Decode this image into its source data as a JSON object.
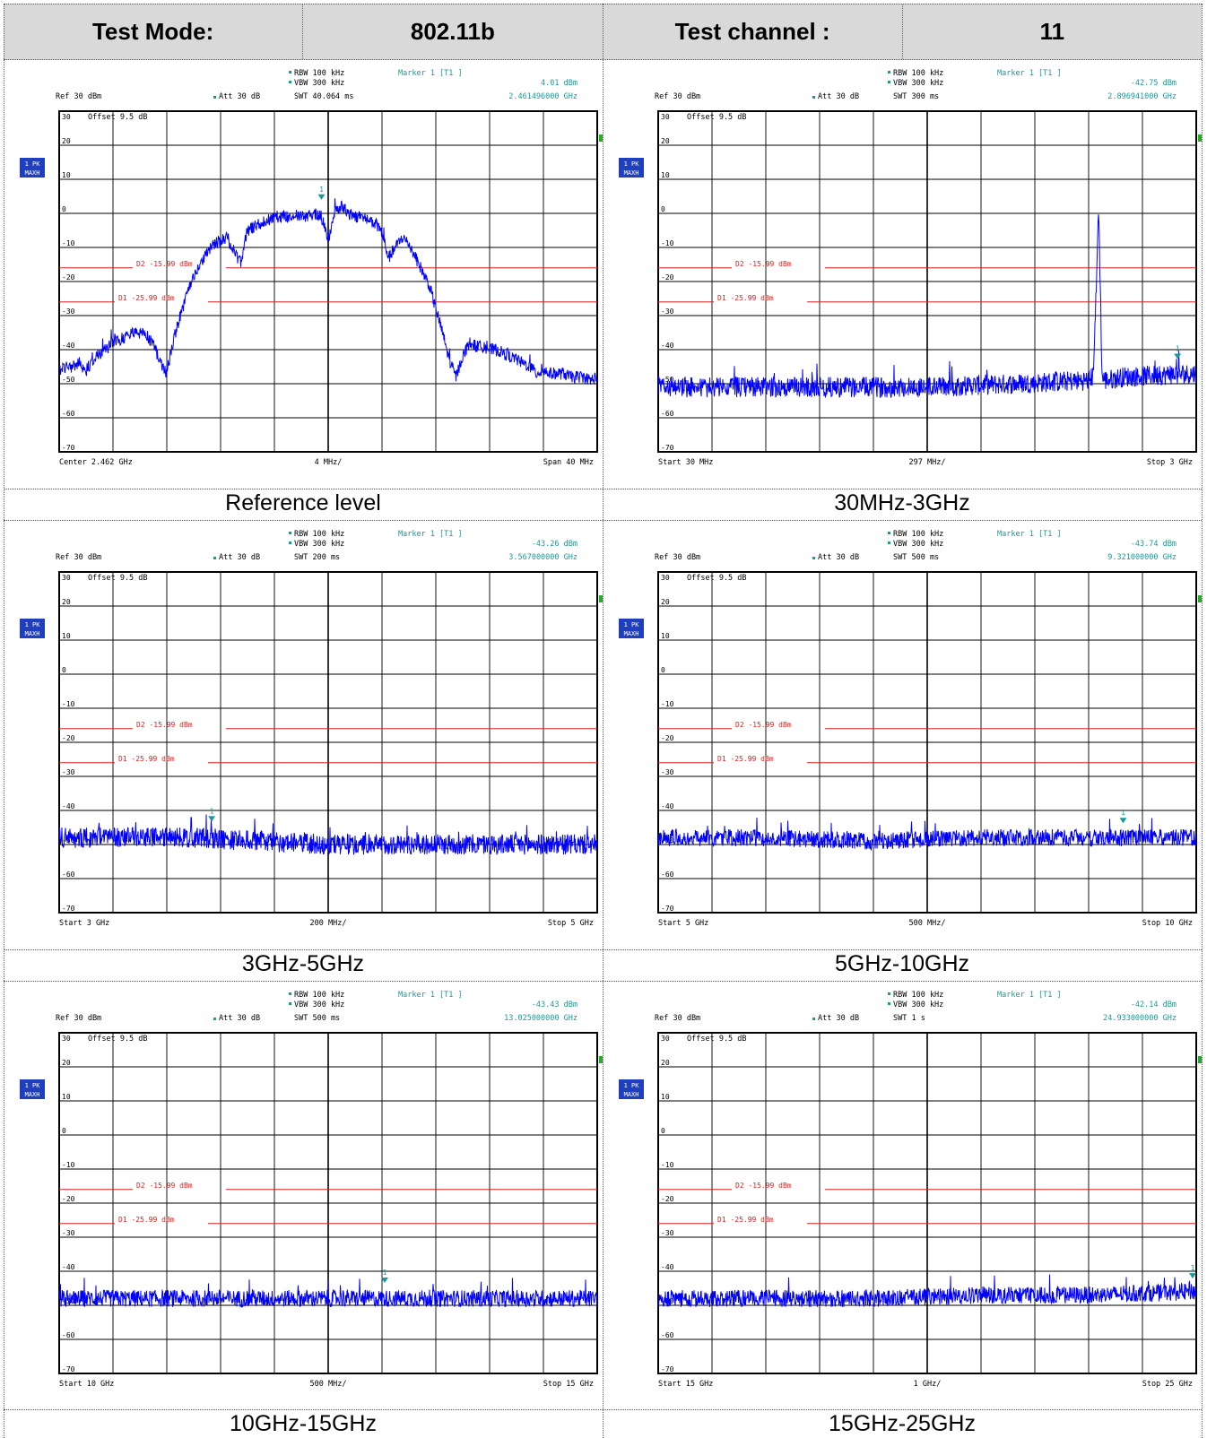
{
  "header": {
    "test_mode_label": "Test Mode:",
    "test_mode_value": "802.11b",
    "test_channel_label": "Test channel :",
    "test_channel_value": "11"
  },
  "plots": [
    {
      "caption": "Reference level",
      "rbw": "RBW 100 kHz",
      "vbw": "VBW 300 kHz",
      "swt": "SWT 40.064 ms",
      "marker": "Marker 1 [T1 ]",
      "marker_level": "4.01 dBm",
      "marker_freq": "2.461496000 GHz",
      "ref": "Ref  30 dBm",
      "att": "Att  30 dB",
      "offset": "Offset  9.5 dB",
      "trace_label": "1 PK",
      "trace_mode": "MAXH",
      "x_left": "Center 2.462 GHz",
      "x_mid": "4 MHz/",
      "x_right": "Span 40 MHz",
      "d1": "D1 -25.99 dBm",
      "d2": "D2 -15.99 dBm",
      "marker_idx": "1"
    },
    {
      "caption": "30MHz-3GHz",
      "rbw": "RBW 100 kHz",
      "vbw": "VBW 300 kHz",
      "swt": "SWT 300 ms",
      "marker": "Marker 1 [T1 ]",
      "marker_level": "-42.75 dBm",
      "marker_freq": "2.896941000 GHz",
      "ref": "Ref  30 dBm",
      "att": "Att  30 dB",
      "offset": "Offset  9.5 dB",
      "trace_label": "1 PK",
      "trace_mode": "MAXH",
      "x_left": "Start 30 MHz",
      "x_mid": "297 MHz/",
      "x_right": "Stop 3 GHz",
      "d1": "D1 -25.99 dBm",
      "d2": "D2 -15.99 dBm",
      "marker_idx": "1"
    },
    {
      "caption": "3GHz-5GHz",
      "rbw": "RBW 100 kHz",
      "vbw": "VBW 300 kHz",
      "swt": "SWT 200 ms",
      "marker": "Marker 1 [T1 ]",
      "marker_level": "-43.26 dBm",
      "marker_freq": "3.567000000 GHz",
      "ref": "Ref  30 dBm",
      "att": "Att  30 dB",
      "offset": "Offset  9.5 dB",
      "trace_label": "1 PK",
      "trace_mode": "MAXH",
      "x_left": "Start 3 GHz",
      "x_mid": "200 MHz/",
      "x_right": "Stop 5 GHz",
      "d1": "D1 -25.99 dBm",
      "d2": "D2 -15.99 dBm",
      "marker_idx": "1"
    },
    {
      "caption": "5GHz-10GHz",
      "rbw": "RBW 100 kHz",
      "vbw": "VBW 300 kHz",
      "swt": "SWT 500 ms",
      "marker": "Marker 1 [T1 ]",
      "marker_level": "-43.74 dBm",
      "marker_freq": "9.321000000 GHz",
      "ref": "Ref  30 dBm",
      "att": "Att  30 dB",
      "offset": "Offset  9.5 dB",
      "trace_label": "1 PK",
      "trace_mode": "MAXH",
      "x_left": "Start 5 GHz",
      "x_mid": "500 MHz/",
      "x_right": "Stop 10 GHz",
      "d1": "D1 -25.99 dBm",
      "d2": "D2 -15.99 dBm",
      "marker_idx": "1"
    },
    {
      "caption": "10GHz-15GHz",
      "rbw": "RBW 100 kHz",
      "vbw": "VBW 300 kHz",
      "swt": "SWT 500 ms",
      "marker": "Marker 1 [T1 ]",
      "marker_level": "-43.43 dBm",
      "marker_freq": "13.025000000 GHz",
      "ref": "Ref  30 dBm",
      "att": "Att  30 dB",
      "offset": "Offset  9.5 dB",
      "trace_label": "1 PK",
      "trace_mode": "MAXH",
      "x_left": "Start 10 GHz",
      "x_mid": "500 MHz/",
      "x_right": "Stop 15 GHz",
      "d1": "D1 -25.99 dBm",
      "d2": "D2 -15.99 dBm",
      "marker_idx": "1"
    },
    {
      "caption": "15GHz-25GHz",
      "rbw": "RBW 100 kHz",
      "vbw": "VBW 300 kHz",
      "swt": "SWT 1 s",
      "marker": "Marker 1 [T1 ]",
      "marker_level": "-42.14 dBm",
      "marker_freq": "24.933000000 GHz",
      "ref": "Ref  30 dBm",
      "att": "Att  30 dB",
      "offset": "Offset  9.5 dB",
      "trace_label": "1 PK",
      "trace_mode": "MAXH",
      "x_left": "Start 15 GHz",
      "x_mid": "1 GHz/",
      "x_right": "Stop 25 GHz",
      "d1": "D1 -25.99 dBm",
      "d2": "D2 -15.99 dBm",
      "marker_idx": "1"
    }
  ],
  "chart_data": [
    {
      "type": "line",
      "ylim": [
        -70,
        30
      ],
      "y_ticks": [
        "30",
        "20",
        "10",
        "0",
        "-10",
        "-20",
        "-30",
        "-40",
        "-50",
        "-60",
        "-70"
      ],
      "thresholds": [
        -15.99,
        -25.99
      ],
      "x": [
        0,
        0.5,
        1,
        1.5,
        2,
        2.5,
        3,
        3.5,
        4,
        4.5,
        5,
        5.5,
        6,
        6.5,
        7,
        7.5,
        8,
        8.5,
        9,
        9.5,
        10,
        10.5,
        11,
        11.5,
        12,
        12.5,
        13,
        13.5,
        14,
        14.5,
        15,
        15.5,
        16,
        16.5,
        17,
        17.5,
        18,
        18.5,
        19,
        19.5,
        20,
        20.5,
        21,
        21.5,
        22,
        22.5,
        23,
        23.5,
        24,
        24.5,
        25,
        25.5,
        26,
        26.5,
        27,
        27.5,
        28,
        28.5,
        29,
        29.5,
        30,
        30.5,
        31,
        31.5,
        32,
        32.5,
        33,
        33.5,
        34,
        34.5,
        35,
        35.5,
        36,
        36.5,
        37,
        37.5,
        38,
        38.5,
        39,
        39.5,
        40
      ],
      "series": [
        {
          "values": [
            -46,
            -45,
            -45,
            -44,
            -46,
            -43,
            -41,
            -40,
            -38,
            -37,
            -36,
            -35,
            -35,
            -36,
            -38,
            -44,
            -47,
            -37,
            -30,
            -24,
            -19,
            -15,
            -11,
            -9,
            -8,
            -7,
            -12,
            -14,
            -5,
            -4,
            -3,
            -2,
            -1,
            -1,
            -1,
            0,
            -1,
            -1,
            0,
            -1,
            -8,
            1,
            2,
            0,
            -1,
            -1,
            -2,
            -3,
            -6,
            -13,
            -10,
            -7,
            -9,
            -13,
            -17,
            -21,
            -28,
            -35,
            -43,
            -48,
            -42,
            -38,
            -39,
            -39,
            -40,
            -40,
            -41,
            -42,
            -43,
            -44,
            -45,
            -47,
            -46,
            -47,
            -47,
            -47,
            -48,
            -48,
            -48,
            -49,
            -48
          ],
          "noise": 1.8
        }
      ],
      "marker": {
        "x": 19.5,
        "y": 4.01
      }
    },
    {
      "type": "line",
      "ylim": [
        -70,
        30
      ],
      "y_ticks": [
        "30",
        "20",
        "10",
        "0",
        "-10",
        "-20",
        "-30",
        "-40",
        "-50",
        "-60",
        "-70"
      ],
      "thresholds": [
        -15.99,
        -25.99
      ],
      "x": [
        30,
        500,
        1000,
        1500,
        2000,
        2400,
        2430,
        2450,
        2460,
        2470,
        2480,
        2500,
        2600,
        3000
      ],
      "series": [
        {
          "values": [
            -51,
            -51,
            -51,
            -51,
            -50,
            -49,
            -48,
            -20,
            3,
            -20,
            -48,
            -49,
            -48,
            -47
          ],
          "noise": 3
        }
      ],
      "marker": {
        "x": 2896.941,
        "y": -42.75
      }
    },
    {
      "type": "line",
      "ylim": [
        -70,
        30
      ],
      "y_ticks": [
        "30",
        "20",
        "10",
        "0",
        "-10",
        "-20",
        "-30",
        "-40",
        "-50",
        "-60",
        "-70"
      ],
      "thresholds": [
        -15.99,
        -25.99
      ],
      "x": [
        3,
        3.5,
        4,
        4.5,
        5
      ],
      "series": [
        {
          "values": [
            -48,
            -48,
            -50,
            -50,
            -50
          ],
          "noise": 3
        }
      ],
      "marker": {
        "x": 3.567,
        "y": -43.26
      }
    },
    {
      "type": "line",
      "ylim": [
        -70,
        30
      ],
      "y_ticks": [
        "30",
        "20",
        "10",
        "0",
        "-10",
        "-20",
        "-30",
        "-40",
        "-50",
        "-60",
        "-70"
      ],
      "thresholds": [
        -15.99,
        -25.99
      ],
      "x": [
        5,
        6,
        7,
        8,
        9,
        10
      ],
      "series": [
        {
          "values": [
            -48,
            -48,
            -49,
            -48,
            -48,
            -48
          ],
          "noise": 2.5
        }
      ],
      "marker": {
        "x": 9.321,
        "y": -43.74
      }
    },
    {
      "type": "line",
      "ylim": [
        -70,
        30
      ],
      "y_ticks": [
        "30",
        "20",
        "10",
        "0",
        "-10",
        "-20",
        "-30",
        "-40",
        "-50",
        "-60",
        "-70"
      ],
      "thresholds": [
        -15.99,
        -25.99
      ],
      "x": [
        10,
        11,
        12,
        13,
        14,
        15
      ],
      "series": [
        {
          "values": [
            -48,
            -48,
            -48,
            -48,
            -48,
            -48
          ],
          "noise": 2.5
        }
      ],
      "marker": {
        "x": 13.025,
        "y": -43.43
      }
    },
    {
      "type": "line",
      "ylim": [
        -70,
        30
      ],
      "y_ticks": [
        "30",
        "20",
        "10",
        "0",
        "-10",
        "-20",
        "-30",
        "-40",
        "-50",
        "-60",
        "-70"
      ],
      "thresholds": [
        -15.99,
        -25.99
      ],
      "x": [
        15,
        17,
        19,
        21,
        23,
        25
      ],
      "series": [
        {
          "values": [
            -48,
            -48,
            -48,
            -47,
            -47,
            -46
          ],
          "noise": 2.5
        }
      ],
      "marker": {
        "x": 24.933,
        "y": -42.14
      }
    }
  ]
}
